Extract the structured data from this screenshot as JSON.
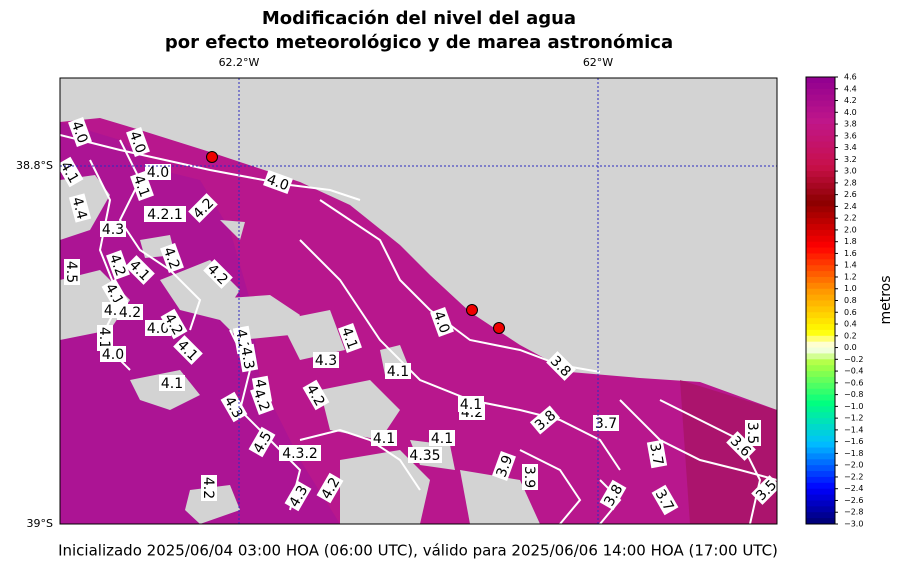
{
  "map": {
    "title": [
      "Modificación del nivel del agua",
      "por efecto meteorológico y de marea astronómica"
    ],
    "lon_labels": [
      "62.2°W",
      "62°W"
    ],
    "lat_labels": [
      "38.8°S",
      "39°S"
    ],
    "colorbar": {
      "label": "metros",
      "ticks": [
        "4.6",
        "4.4",
        "4.2",
        "4.0",
        "3.8",
        "3.6",
        "3.4",
        "3.2",
        "3.0",
        "2.8",
        "2.6",
        "2.4",
        "2.2",
        "2.0",
        "1.8",
        "1.6",
        "1.4",
        "1.2",
        "1.0",
        "0.8",
        "0.6",
        "0.4",
        "0.2",
        "0.0",
        "−0.2",
        "−0.4",
        "−0.6",
        "−0.8",
        "−1.0",
        "−1.2",
        "−1.4",
        "−1.6",
        "−1.8",
        "−2.0",
        "−2.2",
        "−2.4",
        "−2.6",
        "−2.8",
        "−3.0"
      ]
    },
    "contour_labels": [
      "4.0",
      "4.0",
      "4.0",
      "4.1",
      "4.0",
      "4.1",
      "4.4",
      "4.2.1",
      "4.2",
      "4.3",
      "4.5",
      "4.2",
      "4.1",
      "4.2",
      "4.2",
      "4.1",
      "4.3",
      "4.2",
      "4.0",
      "4.1",
      "4.0",
      "4.2",
      "4.2",
      "4.1",
      "4.1",
      "4.3",
      "4.3",
      "4.1",
      "4.2",
      "4.3",
      "4.5",
      "4.3.2",
      "4.2",
      "4.1",
      "4.2",
      "4.35",
      "4.1",
      "4.1",
      "4.2",
      "3.9",
      "3.9",
      "3.8",
      "3.7",
      "3.8",
      "3.7",
      "3.6",
      "3.5",
      "3.7",
      "3.8",
      "3.5",
      "4.3",
      "4.2",
      "4.2",
      "4.0",
      "4.1"
    ],
    "footer": "Inicializado 2025/06/04 03:00 HOA (06:00 UTC), válido para 2025/06/06 14:00 HOA (17:00 UTC)"
  }
}
